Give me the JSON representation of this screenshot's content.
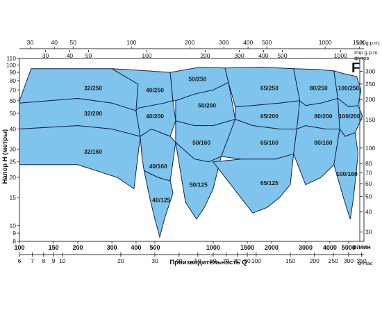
{
  "chart_data": {
    "type": "area",
    "panel_letter": "F",
    "x_primary": {
      "title": "Производительность Q",
      "unit": "л/мин",
      "range": [
        100,
        6000
      ],
      "scale": "log",
      "ticks": [
        100,
        150,
        200,
        300,
        400,
        500,
        1000,
        1500,
        2000,
        3000,
        4000,
        5000
      ]
    },
    "x_m3h": {
      "unit": "м³/час",
      "ticks": [
        6,
        7,
        8,
        9,
        10,
        20,
        30,
        40,
        50,
        60,
        70,
        80,
        90,
        100,
        150,
        200,
        250,
        300,
        350
      ]
    },
    "x_us_gpm": {
      "unit": "US g.p.m.",
      "ticks": [
        30,
        40,
        50,
        100,
        200,
        300,
        400,
        500,
        1000,
        1500
      ]
    },
    "x_imp_gpm": {
      "unit": "Imp g.p.m.",
      "ticks": [
        30,
        40,
        50,
        100,
        200,
        300,
        400,
        500,
        1000,
        1500
      ]
    },
    "y_primary": {
      "title": "Напор H  (метры)",
      "range": [
        8,
        110
      ],
      "scale": "log",
      "ticks": [
        8,
        9,
        10,
        15,
        20,
        25,
        30,
        40,
        50,
        60,
        70,
        80,
        90,
        100,
        110
      ]
    },
    "y_feet": {
      "unit": "футов",
      "ticks": [
        30,
        40,
        50,
        60,
        70,
        80,
        100,
        150,
        200,
        250,
        300
      ]
    },
    "regions": [
      {
        "label": "32/250",
        "poly": [
          [
            100,
            60
          ],
          [
            115,
            95
          ],
          [
            300,
            95
          ],
          [
            410,
            76
          ],
          [
            400,
            52
          ],
          [
            300,
            58
          ],
          [
            200,
            62
          ],
          [
            100,
            58
          ]
        ],
        "label_at": [
          240,
          72
        ]
      },
      {
        "label": "32/200",
        "poly": [
          [
            100,
            58
          ],
          [
            200,
            62
          ],
          [
            300,
            58
          ],
          [
            400,
            52
          ],
          [
            420,
            36
          ],
          [
            300,
            40
          ],
          [
            200,
            42
          ],
          [
            100,
            40
          ]
        ],
        "label_at": [
          240,
          50
        ]
      },
      {
        "label": "32/160",
        "poly": [
          [
            100,
            40
          ],
          [
            200,
            42
          ],
          [
            300,
            40
          ],
          [
            420,
            36
          ],
          [
            390,
            17
          ],
          [
            320,
            20
          ],
          [
            200,
            24
          ],
          [
            100,
            24
          ]
        ],
        "label_at": [
          240,
          29
        ]
      },
      {
        "label": "40/250",
        "poly": [
          [
            300,
            95
          ],
          [
            400,
            93
          ],
          [
            600,
            90
          ],
          [
            620,
            60
          ],
          [
            560,
            58
          ],
          [
            410,
            54
          ],
          [
            400,
            52
          ],
          [
            410,
            76
          ]
        ],
        "label_at": [
          500,
          70
        ]
      },
      {
        "label": "40/200",
        "poly": [
          [
            410,
            54
          ],
          [
            560,
            58
          ],
          [
            620,
            60
          ],
          [
            640,
            45
          ],
          [
            600,
            36
          ],
          [
            480,
            40
          ],
          [
            420,
            36
          ],
          [
            400,
            52
          ]
        ],
        "label_at": [
          500,
          48
        ]
      },
      {
        "label": "40/160",
        "poly": [
          [
            420,
            36
          ],
          [
            480,
            40
          ],
          [
            600,
            36
          ],
          [
            640,
            33
          ],
          [
            600,
            19
          ],
          [
            520,
            20
          ],
          [
            440,
            22
          ],
          [
            430,
            26
          ]
        ],
        "label_at": [
          520,
          23.5
        ]
      },
      {
        "label": "40/125",
        "poly": [
          [
            440,
            22
          ],
          [
            520,
            20
          ],
          [
            600,
            19
          ],
          [
            620,
            16
          ],
          [
            560,
            11
          ],
          [
            530,
            8.5
          ],
          [
            500,
            11
          ],
          [
            470,
            15
          ]
        ],
        "label_at": [
          540,
          14.5
        ]
      },
      {
        "label": "50/250",
        "poly": [
          [
            600,
            90
          ],
          [
            850,
            97
          ],
          [
            1150,
            96
          ],
          [
            1200,
            78
          ],
          [
            1000,
            70
          ],
          [
            800,
            66
          ],
          [
            640,
            60
          ],
          [
            620,
            60
          ]
        ],
        "label_at": [
          830,
          82
        ]
      },
      {
        "label": "50/200",
        "poly": [
          [
            640,
            60
          ],
          [
            800,
            66
          ],
          [
            1000,
            70
          ],
          [
            1200,
            78
          ],
          [
            1300,
            46
          ],
          [
            1000,
            42
          ],
          [
            800,
            42
          ],
          [
            640,
            45
          ]
        ],
        "label_at": [
          930,
          56
        ]
      },
      {
        "label": "50/160",
        "poly": [
          [
            640,
            45
          ],
          [
            800,
            42
          ],
          [
            1000,
            42
          ],
          [
            1300,
            46
          ],
          [
            1100,
            27
          ],
          [
            950,
            25
          ],
          [
            800,
            26
          ],
          [
            640,
            33
          ]
        ],
        "label_at": [
          870,
          33
        ]
      },
      {
        "label": "50/125",
        "poly": [
          [
            640,
            33
          ],
          [
            800,
            26
          ],
          [
            950,
            25
          ],
          [
            1100,
            27
          ],
          [
            1000,
            17
          ],
          [
            900,
            13
          ],
          [
            820,
            11
          ],
          [
            720,
            14
          ]
        ],
        "label_at": [
          840,
          18
        ]
      },
      {
        "label": "65/250",
        "poly": [
          [
            1150,
            96
          ],
          [
            1800,
            97
          ],
          [
            2600,
            95
          ],
          [
            2800,
            60
          ],
          [
            2200,
            58
          ],
          [
            1600,
            56
          ],
          [
            1300,
            55
          ],
          [
            1200,
            78
          ]
        ],
        "label_at": [
          1950,
          72
        ]
      },
      {
        "label": "65/200",
        "poly": [
          [
            1300,
            55
          ],
          [
            1600,
            56
          ],
          [
            2200,
            58
          ],
          [
            2800,
            60
          ],
          [
            2700,
            40
          ],
          [
            2200,
            40
          ],
          [
            1600,
            42
          ],
          [
            1300,
            46
          ]
        ],
        "label_at": [
          1950,
          48
        ]
      },
      {
        "label": "65/160",
        "poly": [
          [
            1100,
            27
          ],
          [
            1300,
            46
          ],
          [
            1600,
            42
          ],
          [
            2200,
            40
          ],
          [
            2700,
            40
          ],
          [
            2600,
            28
          ],
          [
            2100,
            26
          ],
          [
            1400,
            26
          ]
        ],
        "label_at": [
          1950,
          33
        ]
      },
      {
        "label": "65/125",
        "poly": [
          [
            1000,
            25
          ],
          [
            1400,
            26
          ],
          [
            2100,
            26
          ],
          [
            2600,
            28
          ],
          [
            2500,
            18
          ],
          [
            2200,
            15
          ],
          [
            1900,
            13
          ],
          [
            1600,
            12
          ]
        ],
        "label_at": [
          1950,
          18.5
        ]
      },
      {
        "label": "80/250",
        "poly": [
          [
            2600,
            95
          ],
          [
            3400,
            94
          ],
          [
            4200,
            92
          ],
          [
            4400,
            62
          ],
          [
            3600,
            58
          ],
          [
            3000,
            56
          ],
          [
            2800,
            60
          ]
        ],
        "label_at": [
          3500,
          72
        ]
      },
      {
        "label": "80/200",
        "poly": [
          [
            2800,
            60
          ],
          [
            3000,
            56
          ],
          [
            3600,
            58
          ],
          [
            4400,
            62
          ],
          [
            4500,
            40
          ],
          [
            3800,
            40
          ],
          [
            3000,
            42
          ],
          [
            2700,
            40
          ]
        ],
        "label_at": [
          3700,
          48
        ]
      },
      {
        "label": "80/160",
        "poly": [
          [
            2700,
            40
          ],
          [
            3000,
            42
          ],
          [
            3800,
            40
          ],
          [
            4500,
            40
          ],
          [
            4200,
            24
          ],
          [
            3600,
            20
          ],
          [
            3000,
            18
          ],
          [
            2600,
            28
          ]
        ],
        "label_at": [
          3700,
          33
        ]
      },
      {
        "label": "100/250",
        "poly": [
          [
            4200,
            92
          ],
          [
            4800,
            88
          ],
          [
            5500,
            85
          ],
          [
            5800,
            70
          ],
          [
            5600,
            56
          ],
          [
            5000,
            55
          ],
          [
            4400,
            62
          ]
        ],
        "label_at": [
          5000,
          72
        ]
      },
      {
        "label": "100/200",
        "poly": [
          [
            4400,
            62
          ],
          [
            5000,
            55
          ],
          [
            5600,
            56
          ],
          [
            5900,
            48
          ],
          [
            5400,
            38
          ],
          [
            4800,
            36
          ],
          [
            4500,
            40
          ]
        ],
        "label_at": [
          5050,
          48
        ]
      },
      {
        "label": "100/160",
        "poly": [
          [
            4500,
            40
          ],
          [
            4800,
            36
          ],
          [
            5400,
            38
          ],
          [
            5600,
            28
          ],
          [
            5300,
            15
          ],
          [
            5100,
            11
          ],
          [
            4700,
            15
          ],
          [
            4200,
            24
          ]
        ],
        "label_at": [
          4900,
          21
        ]
      }
    ]
  }
}
